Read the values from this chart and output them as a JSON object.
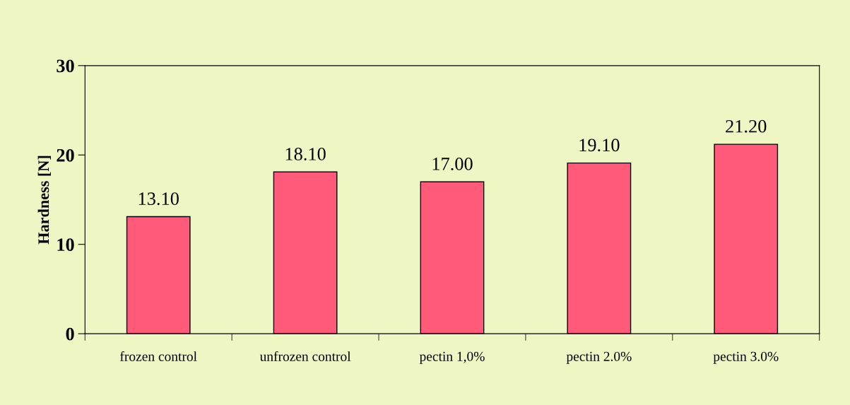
{
  "chart_data": {
    "type": "bar",
    "ylabel": "Hardness [N]",
    "categories": [
      "frozen control",
      "unfrozen control",
      "pectin 1,0%",
      "pectin 2.0%",
      "pectin 3.0%"
    ],
    "values": [
      13.1,
      18.1,
      17.0,
      19.1,
      21.2
    ],
    "value_labels": [
      "13.10",
      "18.10",
      "17.00",
      "19.10",
      "21.20"
    ],
    "color": "#ff5a7a",
    "ylim": [
      0,
      30
    ],
    "yticks": [
      0,
      10,
      20,
      30
    ],
    "grid": false
  }
}
